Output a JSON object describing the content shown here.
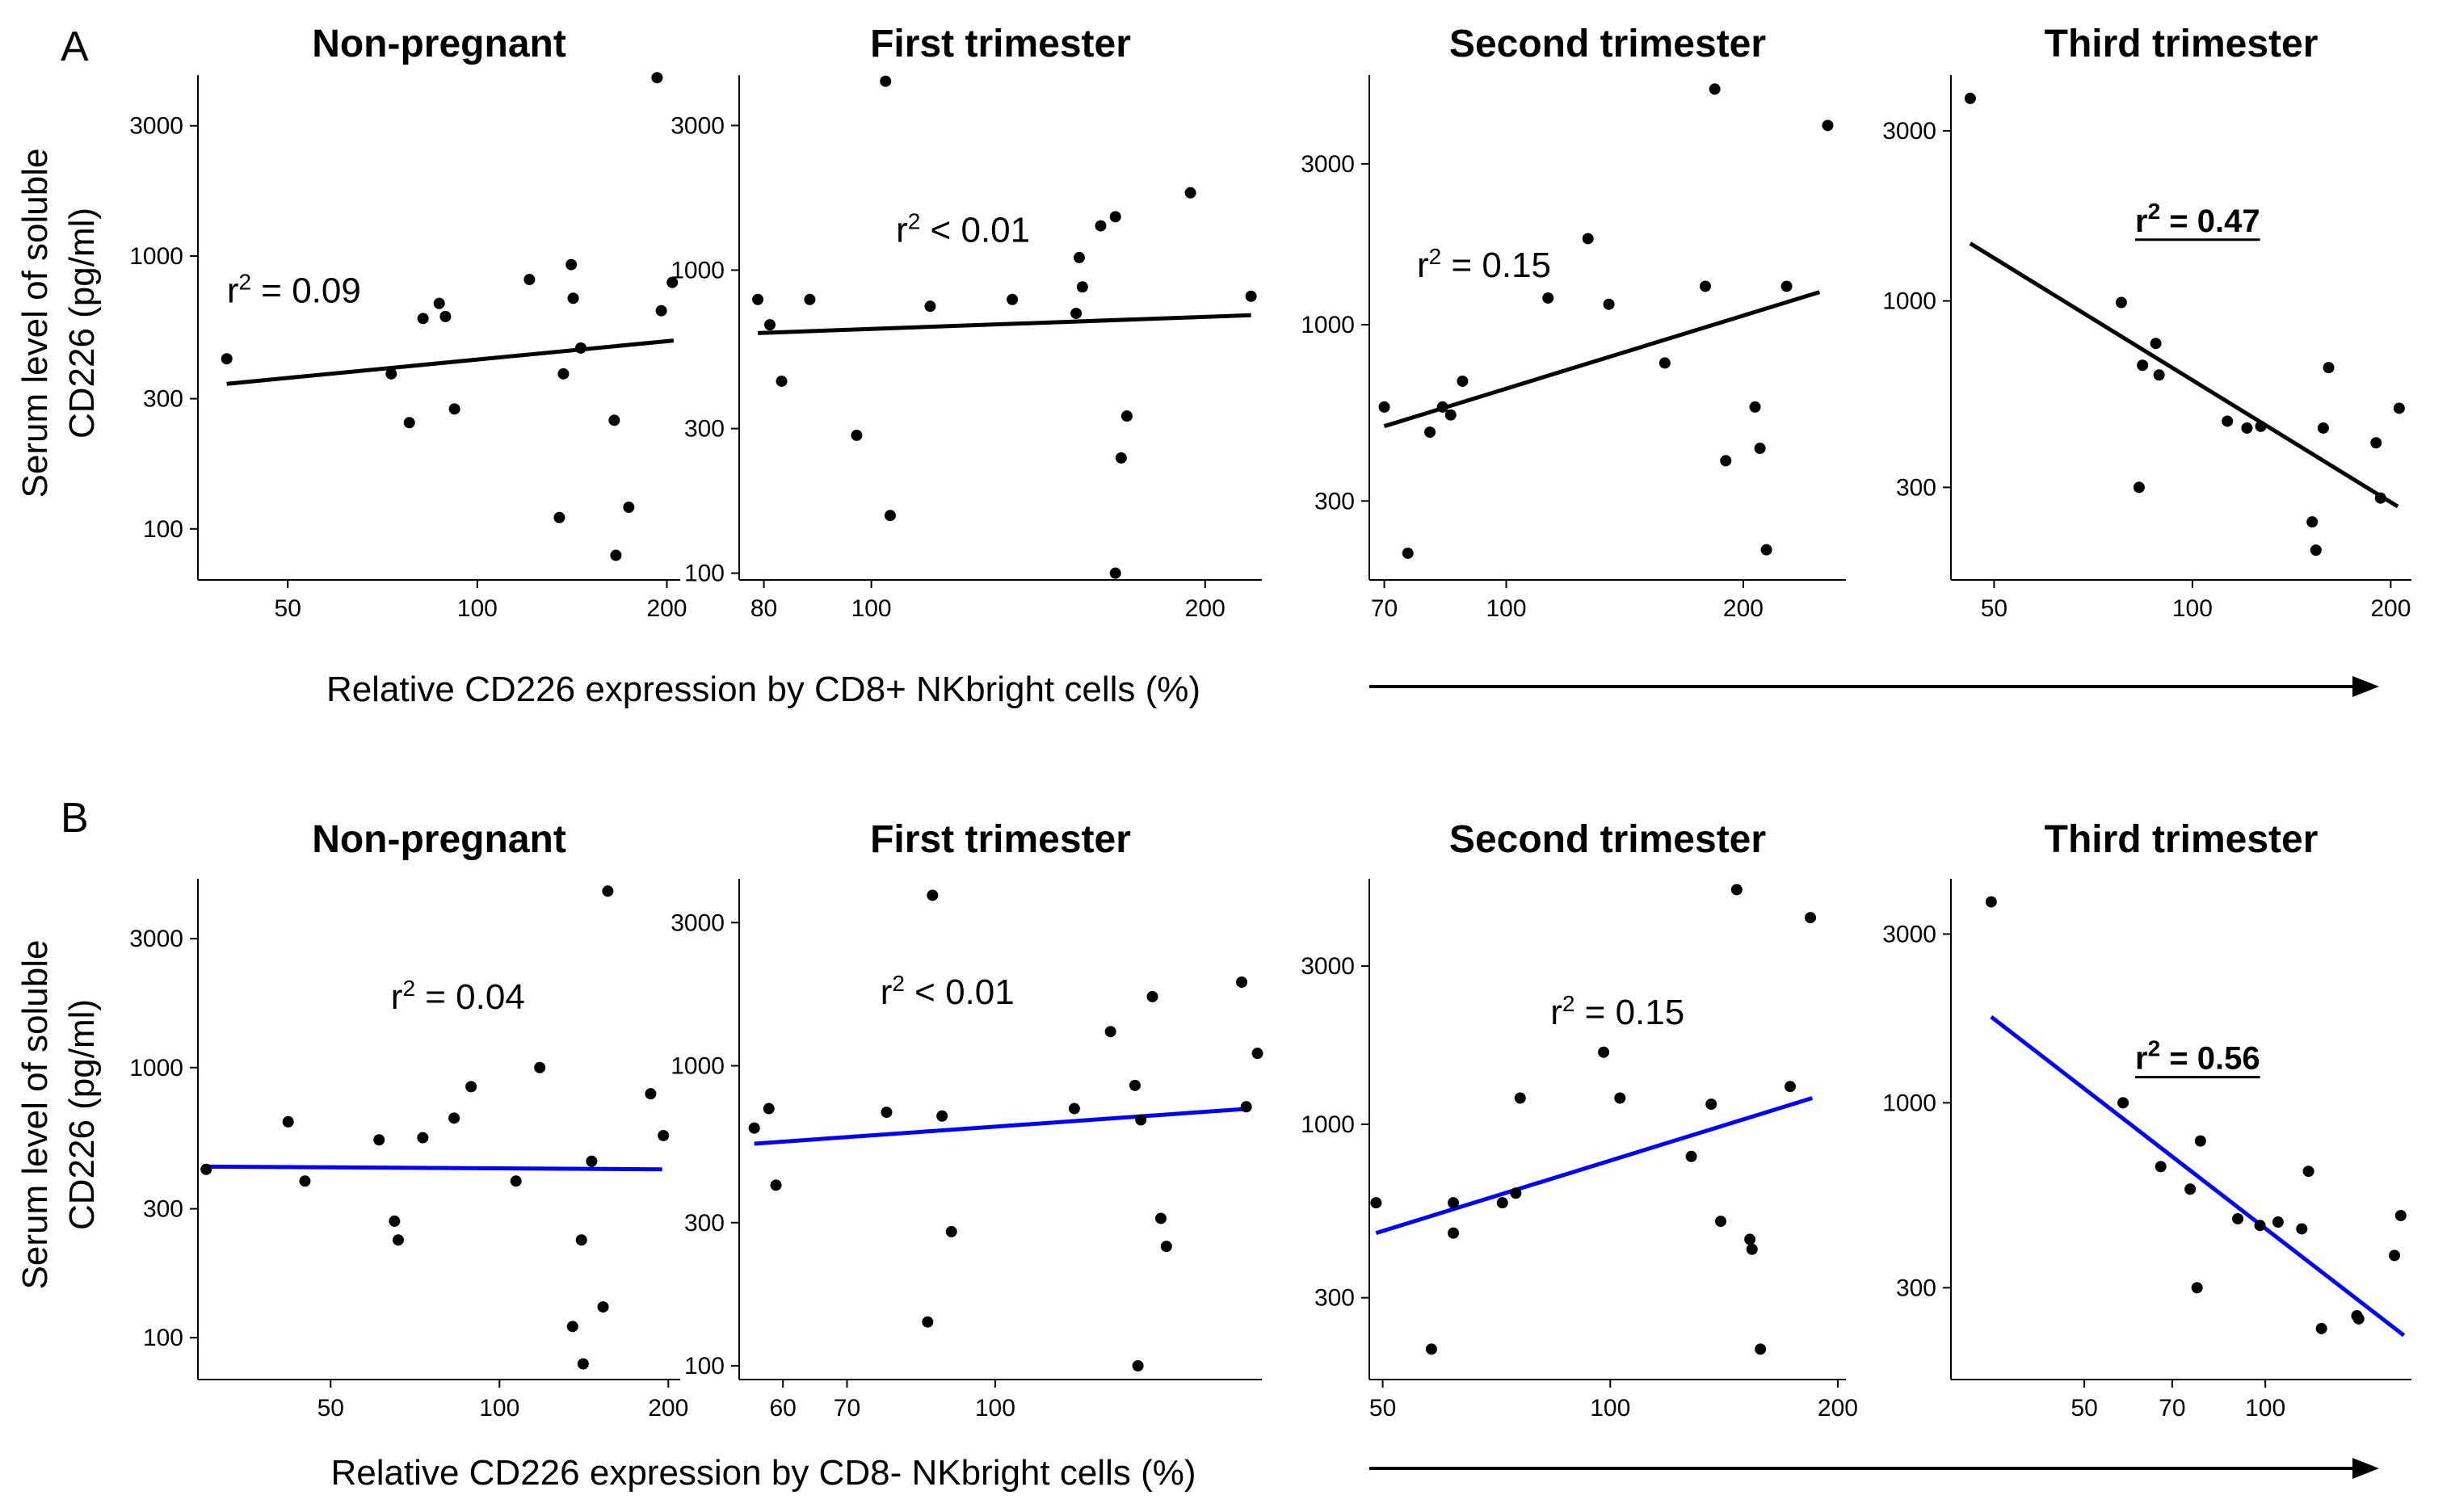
{
  "panel_labels": [
    "A",
    "B"
  ],
  "rows": [
    {
      "panel": "A",
      "xlabel": "Relative CD226 expression by CD8+ NKbright cells (%)",
      "ylabel_line1": "Serum level of soluble",
      "ylabel_line2": "CD226 (pg/ml)",
      "fit_color": "#000000"
    },
    {
      "panel": "B",
      "xlabel": "Relative CD226 expression by CD8- NKbright cells (%)",
      "ylabel_line1": "Serum level of soluble",
      "ylabel_line2": "CD226 (pg/ml)",
      "fit_color": "#0000ff"
    }
  ],
  "chart_data": [
    {
      "type": "scatter",
      "panel": "A",
      "title": "Non-pregnant",
      "xscale": "log",
      "yscale": "log",
      "xlim": [
        36,
        210
      ],
      "ylim": [
        65,
        4600
      ],
      "xticks": [
        50,
        100,
        200
      ],
      "yticks": [
        100,
        300,
        1000,
        3000
      ],
      "r2_label": "0.09",
      "r2_operator": "=",
      "r2_bold": false,
      "fit": [
        [
          40,
          340
        ],
        [
          205,
          490
        ]
      ],
      "points": [
        [
          40,
          420
        ],
        [
          73,
          370
        ],
        [
          78,
          245
        ],
        [
          82,
          590
        ],
        [
          87,
          670
        ],
        [
          89,
          600
        ],
        [
          92,
          275
        ],
        [
          121,
          820
        ],
        [
          135,
          110
        ],
        [
          137,
          370
        ],
        [
          141,
          930
        ],
        [
          142,
          700
        ],
        [
          146,
          460
        ],
        [
          165,
          250
        ],
        [
          166,
          80
        ],
        [
          174,
          120
        ],
        [
          193,
          4500
        ],
        [
          196,
          630
        ],
        [
          204,
          800
        ]
      ]
    },
    {
      "type": "scatter",
      "panel": "A",
      "title": "First trimester",
      "xscale": "log",
      "yscale": "log",
      "xlim": [
        76,
        225
      ],
      "ylim": [
        95,
        4400
      ],
      "xticks": [
        80,
        100,
        200
      ],
      "yticks": [
        100,
        300,
        1000,
        3000
      ],
      "r2_label": "< 0.01",
      "r2_operator": "",
      "r2_bold": false,
      "fit": [
        [
          79,
          620
        ],
        [
          220,
          710
        ]
      ],
      "points": [
        [
          79,
          800
        ],
        [
          81,
          660
        ],
        [
          83,
          430
        ],
        [
          88,
          800
        ],
        [
          97,
          285
        ],
        [
          103,
          4200
        ],
        [
          104,
          155
        ],
        [
          113,
          760
        ],
        [
          134,
          800
        ],
        [
          153,
          720
        ],
        [
          154,
          1100
        ],
        [
          155,
          880
        ],
        [
          161,
          1400
        ],
        [
          166,
          1500
        ],
        [
          168,
          240
        ],
        [
          170,
          330
        ],
        [
          166,
          100
        ],
        [
          194,
          1800
        ],
        [
          220,
          820
        ]
      ]
    },
    {
      "type": "scatter",
      "panel": "A",
      "title": "Second trimester",
      "xscale": "log",
      "yscale": "log",
      "xlim": [
        67,
        270
      ],
      "ylim": [
        175,
        5500
      ],
      "xticks": [
        70,
        100,
        200
      ],
      "yticks": [
        300,
        1000,
        3000
      ],
      "r2_label": "0.15",
      "r2_operator": "=",
      "r2_bold": false,
      "fit": [
        [
          70,
          500
        ],
        [
          250,
          1250
        ]
      ],
      "points": [
        [
          70,
          570
        ],
        [
          75,
          210
        ],
        [
          80,
          480
        ],
        [
          83,
          570
        ],
        [
          85,
          540
        ],
        [
          88,
          680
        ],
        [
          113,
          1200
        ],
        [
          127,
          1800
        ],
        [
          135,
          1150
        ],
        [
          159,
          770
        ],
        [
          179,
          1300
        ],
        [
          184,
          5000
        ],
        [
          190,
          395
        ],
        [
          207,
          570
        ],
        [
          210,
          430
        ],
        [
          214,
          215
        ],
        [
          227,
          1300
        ],
        [
          256,
          3900
        ]
      ]
    },
    {
      "type": "scatter",
      "panel": "A",
      "title": "Third trimester",
      "xscale": "log",
      "yscale": "log",
      "xlim": [
        43,
        215
      ],
      "ylim": [
        165,
        4300
      ],
      "xticks": [
        50,
        100,
        200
      ],
      "yticks": [
        300,
        1000,
        3000
      ],
      "r2_label": "0.47",
      "r2_operator": "=",
      "r2_bold": true,
      "fit": [
        [
          46,
          1450
        ],
        [
          205,
          265
        ]
      ],
      "points": [
        [
          46,
          3700
        ],
        [
          78,
          990
        ],
        [
          83,
          300
        ],
        [
          84,
          660
        ],
        [
          88,
          760
        ],
        [
          89,
          620
        ],
        [
          113,
          460
        ],
        [
          121,
          440
        ],
        [
          127,
          445
        ],
        [
          152,
          240
        ],
        [
          154,
          200
        ],
        [
          158,
          440
        ],
        [
          161,
          650
        ],
        [
          190,
          400
        ],
        [
          193,
          280
        ],
        [
          206,
          500
        ]
      ]
    },
    {
      "type": "scatter",
      "panel": "B",
      "title": "Non-pregnant",
      "xscale": "log",
      "yscale": "log",
      "xlim": [
        29,
        210
      ],
      "ylim": [
        70,
        5000
      ],
      "xticks": [
        50,
        100,
        200
      ],
      "yticks": [
        100,
        300,
        1000,
        3000
      ],
      "r2_label": "0.04",
      "r2_operator": "=",
      "r2_bold": false,
      "fit": [
        [
          30,
          430
        ],
        [
          195,
          420
        ]
      ],
      "points": [
        [
          30,
          420
        ],
        [
          42,
          630
        ],
        [
          45,
          380
        ],
        [
          61,
          540
        ],
        [
          65,
          270
        ],
        [
          66,
          230
        ],
        [
          73,
          550
        ],
        [
          83,
          650
        ],
        [
          89,
          850
        ],
        [
          107,
          380
        ],
        [
          118,
          1000
        ],
        [
          135,
          110
        ],
        [
          140,
          230
        ],
        [
          141,
          80
        ],
        [
          146,
          450
        ],
        [
          153,
          130
        ],
        [
          156,
          4500
        ],
        [
          186,
          800
        ],
        [
          196,
          560
        ]
      ]
    },
    {
      "type": "scatter",
      "panel": "B",
      "title": "First trimester",
      "xscale": "log",
      "yscale": "log",
      "xlim": [
        54,
        190
      ],
      "ylim": [
        90,
        4200
      ],
      "xticks": [
        60,
        70,
        100
      ],
      "yticks": [
        100,
        300,
        1000,
        3000
      ],
      "r2_label": "< 0.01",
      "r2_operator": "",
      "r2_bold": false,
      "fit": [
        [
          56,
          550
        ],
        [
          185,
          720
        ]
      ],
      "points": [
        [
          56,
          620
        ],
        [
          58,
          720
        ],
        [
          59,
          400
        ],
        [
          77,
          700
        ],
        [
          86,
          3700
        ],
        [
          88,
          680
        ],
        [
          90,
          280
        ],
        [
          85,
          140
        ],
        [
          121,
          720
        ],
        [
          132,
          1300
        ],
        [
          140,
          860
        ],
        [
          142,
          660
        ],
        [
          146,
          1700
        ],
        [
          149,
          310
        ],
        [
          151,
          250
        ],
        [
          141,
          100
        ],
        [
          181,
          1900
        ],
        [
          183,
          730
        ],
        [
          188,
          1100
        ]
      ]
    },
    {
      "type": "scatter",
      "panel": "B",
      "title": "Second trimester",
      "xscale": "log",
      "yscale": "log",
      "xlim": [
        48,
        205
      ],
      "ylim": [
        170,
        5500
      ],
      "xticks": [
        50,
        100,
        200
      ],
      "yticks": [
        300,
        1000,
        3000
      ],
      "r2_label": "0.15",
      "r2_operator": "=",
      "r2_bold": false,
      "fit": [
        [
          49,
          470
        ],
        [
          185,
          1200
        ]
      ],
      "points": [
        [
          49,
          580
        ],
        [
          58,
          210
        ],
        [
          62,
          580
        ],
        [
          62,
          470
        ],
        [
          72,
          580
        ],
        [
          75,
          620
        ],
        [
          76,
          1200
        ],
        [
          98,
          1650
        ],
        [
          103,
          1200
        ],
        [
          128,
          800
        ],
        [
          136,
          1150
        ],
        [
          140,
          510
        ],
        [
          147,
          5100
        ],
        [
          153,
          450
        ],
        [
          154,
          420
        ],
        [
          158,
          210
        ],
        [
          173,
          1300
        ],
        [
          184,
          4200
        ]
      ]
    },
    {
      "type": "scatter",
      "panel": "B",
      "title": "Third trimester",
      "xscale": "log",
      "yscale": "log",
      "xlim": [
        30,
        175
      ],
      "ylim": [
        165,
        4300
      ],
      "xticks": [
        50,
        70,
        100
      ],
      "yticks": [
        300,
        1000,
        3000
      ],
      "r2_label": "0.56",
      "r2_operator": "=",
      "r2_bold": true,
      "fit": [
        [
          35,
          1750
        ],
        [
          170,
          220
        ]
      ],
      "points": [
        [
          35,
          3700
        ],
        [
          58,
          1000
        ],
        [
          67,
          660
        ],
        [
          75,
          570
        ],
        [
          77,
          300
        ],
        [
          78,
          780
        ],
        [
          90,
          470
        ],
        [
          98,
          450
        ],
        [
          105,
          460
        ],
        [
          115,
          440
        ],
        [
          118,
          640
        ],
        [
          124,
          230
        ],
        [
          142,
          250
        ],
        [
          143,
          245
        ],
        [
          164,
          370
        ],
        [
          168,
          480
        ]
      ]
    }
  ]
}
